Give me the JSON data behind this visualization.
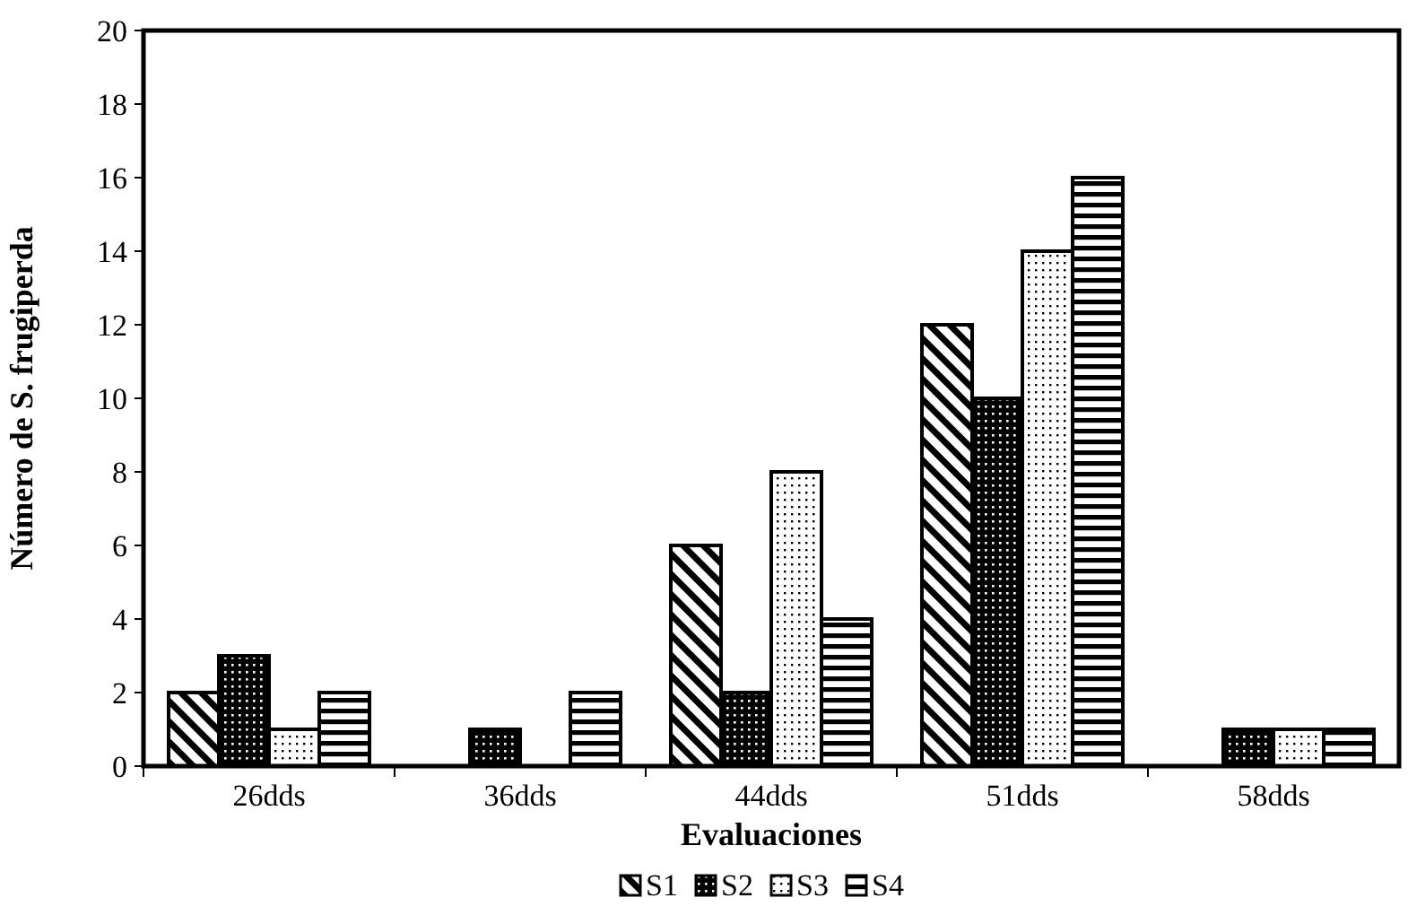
{
  "chart_data": {
    "type": "bar",
    "xlabel": "Evaluaciones",
    "ylabel": "Número de S. frugiperda",
    "categories": [
      "26dds",
      "36dds",
      "44dds",
      "51dds",
      "58dds"
    ],
    "series": [
      {
        "name": "S1",
        "color": "#000000",
        "values": [
          2,
          0,
          6,
          12,
          0
        ]
      },
      {
        "name": "S2",
        "color": "#000000",
        "values": [
          3,
          1,
          2,
          10,
          1
        ]
      },
      {
        "name": "S3",
        "color": "#000000",
        "values": [
          1,
          0,
          8,
          14,
          1
        ]
      },
      {
        "name": "S4",
        "color": "#000000",
        "values": [
          2,
          2,
          4,
          16,
          1
        ]
      }
    ],
    "ylim": [
      0,
      20
    ],
    "yticks": [
      0,
      2,
      4,
      6,
      8,
      10,
      12,
      14,
      16,
      18,
      20
    ],
    "grid": false,
    "legend": "bottom"
  }
}
